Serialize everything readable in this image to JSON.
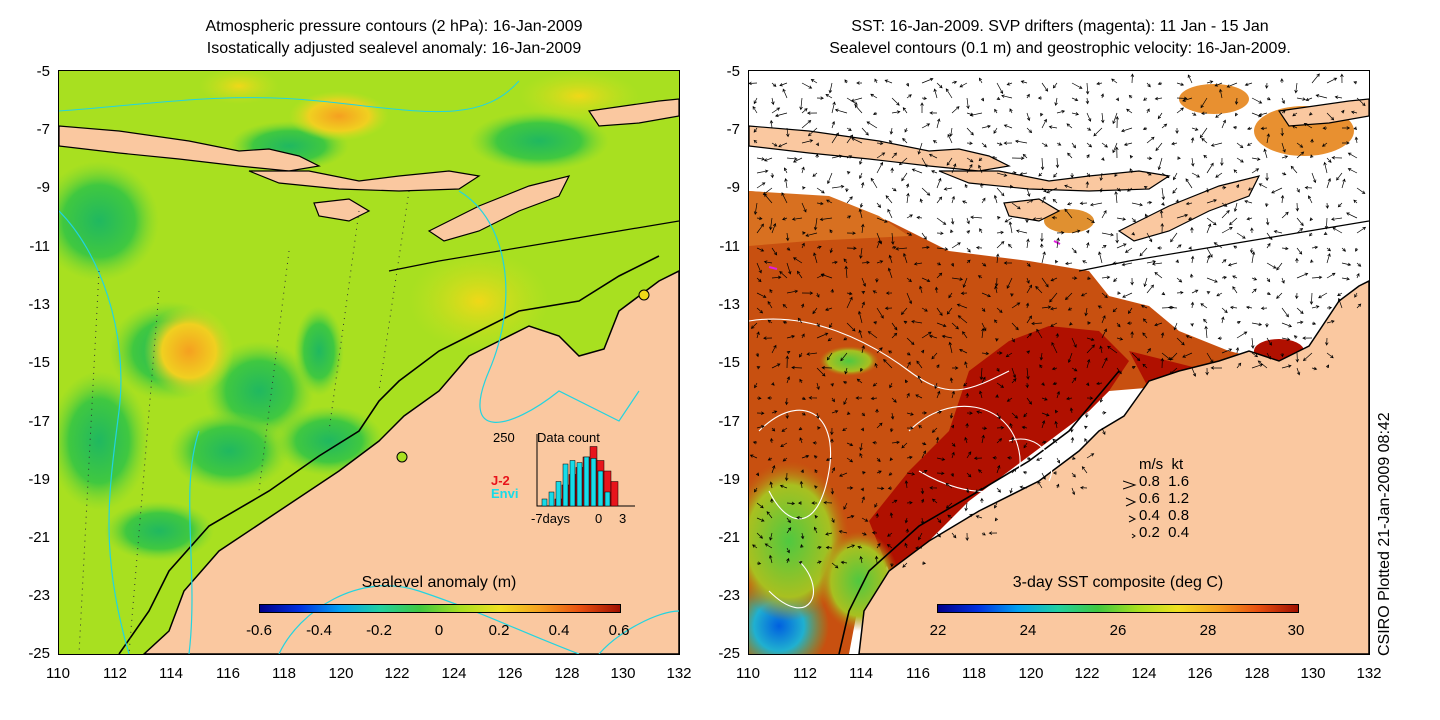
{
  "left_panel": {
    "title_line1": "Atmospheric pressure contours (2 hPa): 16-Jan-2009",
    "title_line2": "Isostatically adjusted sealevel anomaly: 16-Jan-2009",
    "y_ticks": [
      "-5",
      "-7",
      "-9",
      "-11",
      "-13",
      "-15",
      "-17",
      "-19",
      "-21",
      "-23",
      "-25"
    ],
    "x_ticks": [
      "110",
      "112",
      "114",
      "116",
      "118",
      "120",
      "122",
      "124",
      "126",
      "128",
      "130",
      "132"
    ],
    "colorbar_title": "Sealevel anomaly (m)",
    "colorbar_ticks": [
      "-0.6",
      "-0.4",
      "-0.2",
      "0",
      "0.2",
      "0.4",
      "0.6"
    ],
    "inset": {
      "max_label": "250",
      "title": "Data count",
      "series1": "J-2",
      "series2": "Envi",
      "x_label_left": "-7days",
      "x_label_mid": "0",
      "x_label_right": "3",
      "series1_color": "#e8141c",
      "series2_color": "#17dbe8",
      "series1_values": [
        0.0,
        0.0,
        0.1,
        0.3,
        0.45,
        0.55,
        0.7,
        0.85,
        0.65,
        0.5,
        0.35
      ],
      "series2_values": [
        0.1,
        0.2,
        0.35,
        0.6,
        0.65,
        0.62,
        0.7,
        0.68,
        0.5,
        0.2,
        0.0
      ]
    }
  },
  "right_panel": {
    "title_line1": "SST: 16-Jan-2009. SVP drifters (magenta): 11 Jan - 15 Jan",
    "title_line2": "Sealevel contours (0.1 m) and geostrophic velocity: 16-Jan-2009.",
    "y_ticks": [
      "-5",
      "-7",
      "-9",
      "-11",
      "-13",
      "-15",
      "-17",
      "-19",
      "-21",
      "-23",
      "-25"
    ],
    "x_ticks": [
      "110",
      "112",
      "114",
      "116",
      "118",
      "120",
      "122",
      "124",
      "126",
      "128",
      "130",
      "132"
    ],
    "colorbar_title": "3-day SST composite (deg C)",
    "colorbar_ticks": [
      "22",
      "24",
      "26",
      "28",
      "30"
    ],
    "legend_header": "m/s  kt",
    "legend_rows": [
      "0.8  1.6",
      "0.6  1.2",
      "0.4  0.8",
      "0.2  0.4"
    ]
  },
  "credit": "CSIRO Plotted 21-Jan-2009 08:42",
  "colors": {
    "land": "#fac8a0",
    "sst_warm": "#b01000",
    "sla_base": "#a8e020",
    "contour_cyan": "#22d4e0"
  }
}
